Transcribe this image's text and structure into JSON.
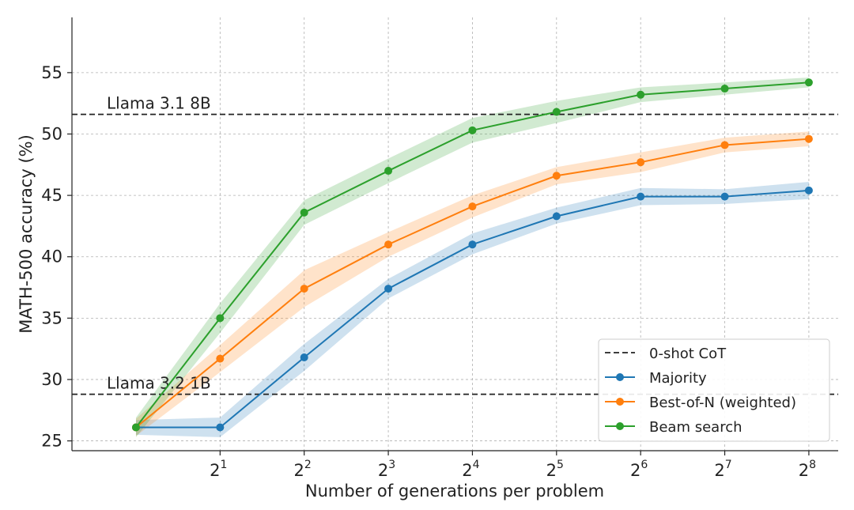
{
  "chart_data": {
    "type": "line",
    "xlabel": "Number of generations per problem",
    "ylabel": "MATH-500 accuracy (%)",
    "x_scale": "log2",
    "x_ticks": [
      {
        "base": "2",
        "exp": "1",
        "value": 2
      },
      {
        "base": "2",
        "exp": "2",
        "value": 4
      },
      {
        "base": "2",
        "exp": "3",
        "value": 8
      },
      {
        "base": "2",
        "exp": "4",
        "value": 16
      },
      {
        "base": "2",
        "exp": "5",
        "value": 32
      },
      {
        "base": "2",
        "exp": "6",
        "value": 64
      },
      {
        "base": "2",
        "exp": "7",
        "value": 128
      },
      {
        "base": "2",
        "exp": "8",
        "value": 256
      }
    ],
    "y_ticks": [
      "25",
      "30",
      "35",
      "40",
      "45",
      "50",
      "55"
    ],
    "xlim": [
      0.59,
      326
    ],
    "ylim": [
      24.2,
      59.5
    ],
    "grid": true,
    "legend_position": "lower-right",
    "reference_lines": [
      {
        "label": "Llama 3.1 8B",
        "y": 51.6
      },
      {
        "label": "Llama 3.2 1B",
        "y": 28.8
      }
    ],
    "series": [
      {
        "name": "Majority",
        "color": "#1f77b4",
        "x": [
          1,
          2,
          4,
          8,
          16,
          32,
          64,
          128,
          256
        ],
        "y": [
          26.1,
          26.1,
          31.8,
          37.4,
          41.0,
          43.3,
          44.9,
          44.9,
          45.4
        ],
        "band_lower": [
          25.5,
          25.3,
          30.7,
          36.6,
          40.2,
          42.7,
          44.2,
          44.3,
          44.7
        ],
        "band_upper": [
          26.7,
          26.9,
          32.9,
          38.2,
          41.9,
          44.0,
          45.6,
          45.5,
          46.1
        ]
      },
      {
        "name": "Best-of-N (weighted)",
        "color": "#ff7f0e",
        "x": [
          1,
          2,
          4,
          8,
          16,
          32,
          64,
          128,
          256
        ],
        "y": [
          26.1,
          31.7,
          37.4,
          41.0,
          44.1,
          46.6,
          47.7,
          49.1,
          49.6
        ],
        "band_lower": [
          25.4,
          30.6,
          35.9,
          40.0,
          43.2,
          45.9,
          46.9,
          48.5,
          49.0
        ],
        "band_upper": [
          26.8,
          32.8,
          38.9,
          42.0,
          45.0,
          47.3,
          48.5,
          49.7,
          50.2
        ]
      },
      {
        "name": "Beam search",
        "color": "#2ca02c",
        "x": [
          1,
          2,
          4,
          8,
          16,
          32,
          64,
          128,
          256
        ],
        "y": [
          26.1,
          35.0,
          43.6,
          47.0,
          50.3,
          51.8,
          53.2,
          53.7,
          54.2
        ],
        "band_lower": [
          25.3,
          33.8,
          42.6,
          46.0,
          49.3,
          50.9,
          52.6,
          53.2,
          53.8
        ],
        "band_upper": [
          26.9,
          36.2,
          44.6,
          48.0,
          51.3,
          52.7,
          53.8,
          54.2,
          54.6
        ]
      }
    ],
    "legend": [
      {
        "label": "0-shot CoT",
        "style": "dashed",
        "color": "#222222"
      },
      {
        "label": "Majority",
        "style": "line-marker",
        "color": "#1f77b4"
      },
      {
        "label": "Best-of-N (weighted)",
        "style": "line-marker",
        "color": "#ff7f0e"
      },
      {
        "label": "Beam search",
        "style": "line-marker",
        "color": "#2ca02c"
      }
    ]
  }
}
